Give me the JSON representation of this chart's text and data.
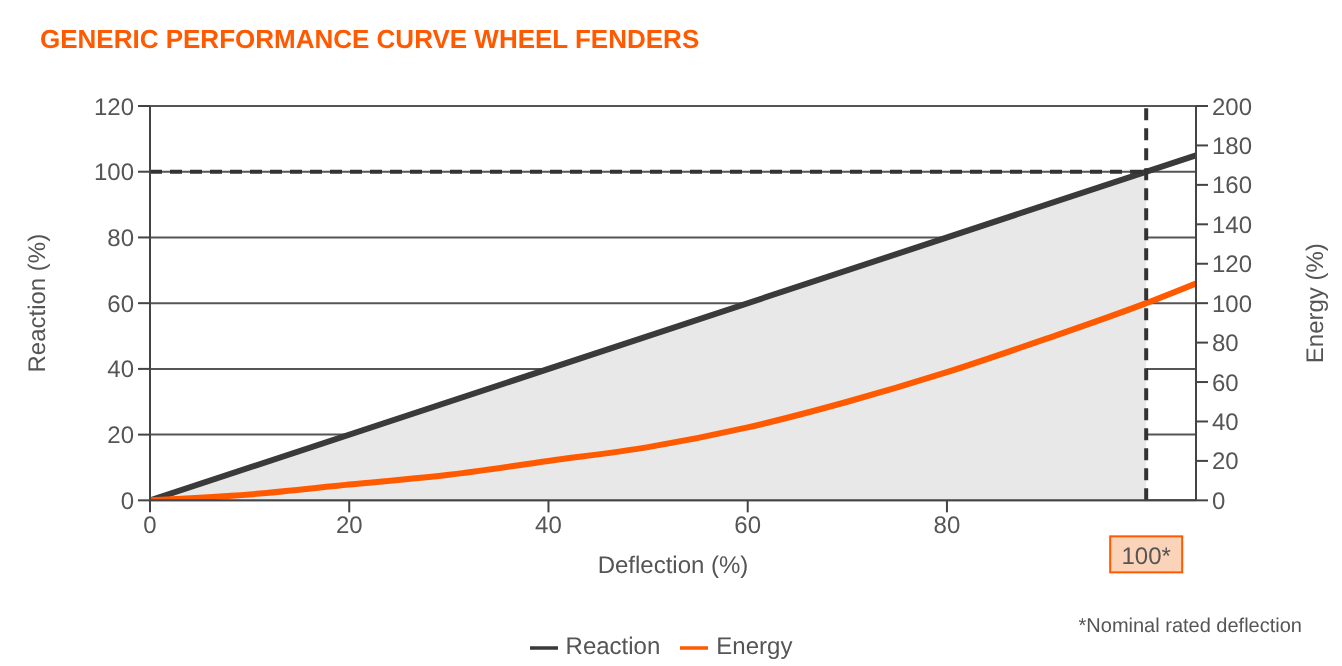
{
  "chart_data": {
    "type": "line",
    "title": "GENERIC PERFORMANCE CURVE WHEEL FENDERS",
    "xlabel": "Deflection (%)",
    "ylabel": "Reaction (%)",
    "y2label": "Energy (%)",
    "xlim": [
      0,
      105
    ],
    "xticks": [
      0,
      20,
      40,
      60,
      80
    ],
    "ylim": [
      0,
      120
    ],
    "yticks": [
      0,
      20,
      40,
      60,
      80,
      100,
      120
    ],
    "y2lim": [
      0,
      200
    ],
    "y2ticks": [
      0,
      20,
      40,
      60,
      80,
      100,
      120,
      140,
      160,
      180,
      200
    ],
    "grid": "y",
    "legend": "bottom",
    "marker": "none",
    "series": [
      {
        "type": "area",
        "color": "#e8e8e8",
        "x": [
          0,
          100
        ],
        "values": [
          0,
          100
        ]
      },
      {
        "name": "Reaction",
        "color": "#3a3a3a",
        "x": [
          0,
          105
        ],
        "values": [
          0,
          105
        ]
      },
      {
        "name": "Energy",
        "axis": "y2",
        "color": "#ff5a00",
        "x": [
          0,
          10,
          20,
          30,
          40,
          50,
          60,
          70,
          80,
          90,
          100,
          105
        ],
        "values": [
          0,
          3,
          8,
          13,
          20,
          27,
          37,
          50,
          65,
          82,
          100,
          110
        ]
      }
    ],
    "ref_lines": [
      {
        "axis": "y",
        "value": 100,
        "color": "#333333",
        "line_style": "dashed"
      },
      {
        "axis": "x",
        "value": 100,
        "label": "100*",
        "color": "#333333",
        "line_style": "dashed"
      }
    ],
    "annotations": [
      "*Nominal rated deflection"
    ]
  }
}
